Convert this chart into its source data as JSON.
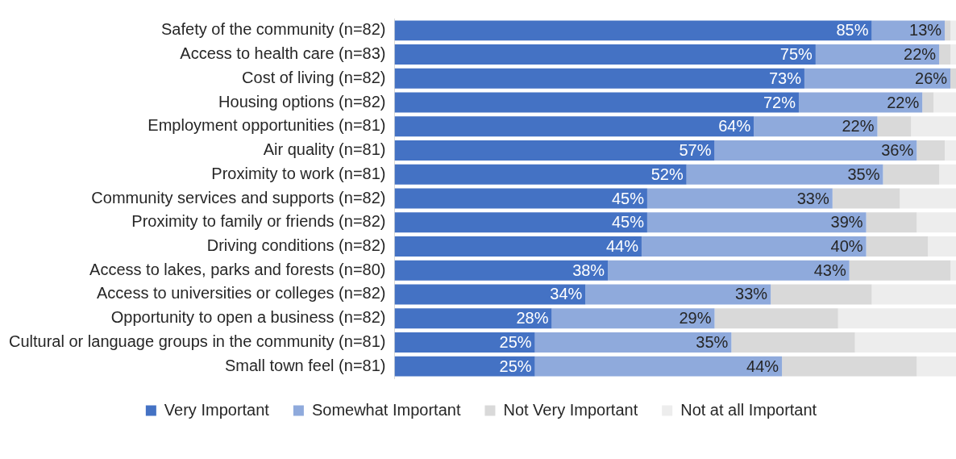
{
  "chart_data": {
    "type": "bar",
    "orientation": "horizontal",
    "stacked": true,
    "legend": "bottom",
    "tick_labels": "y",
    "xlim": [
      0,
      100
    ],
    "categories": [
      "Safety of the community (n=82)",
      "Access to health care (n=83)",
      "Cost of living (n=82)",
      "Housing options (n=82)",
      "Employment opportunities (n=81)",
      "Air quality (n=81)",
      "Proximity to work (n=81)",
      "Community services and supports (n=82)",
      "Proximity to family or friends (n=82)",
      "Driving conditions (n=82)",
      "Access to lakes, parks and forests (n=80)",
      "Access to universities or colleges (n=82)",
      "Opportunity to open a business (n=82)",
      "Cultural or language groups in the community (n=81)",
      "Small town feel (n=81)"
    ],
    "series": [
      {
        "name": "Very Important",
        "color": "#4472c4",
        "values": [
          85,
          75,
          73,
          72,
          64,
          57,
          52,
          45,
          45,
          44,
          38,
          34,
          28,
          25,
          25
        ],
        "value_labels": [
          "85%",
          "75%",
          "73%",
          "72%",
          "64%",
          "57%",
          "52%",
          "45%",
          "45%",
          "44%",
          "38%",
          "34%",
          "28%",
          "25%",
          "25%"
        ]
      },
      {
        "name": "Somewhat Important",
        "color": "#8faadc",
        "values": [
          13,
          22,
          26,
          22,
          22,
          36,
          35,
          33,
          39,
          40,
          43,
          33,
          29,
          35,
          44
        ],
        "value_labels": [
          "13%",
          "22%",
          "26%",
          "22%",
          "22%",
          "36%",
          "35%",
          "33%",
          "39%",
          "40%",
          "43%",
          "33%",
          "29%",
          "35%",
          "44%"
        ]
      },
      {
        "name": "Not Very Important",
        "color": "#d9d9d9",
        "values": [
          1,
          2,
          1,
          2,
          6,
          5,
          10,
          12,
          9,
          11,
          18,
          18,
          22,
          22,
          24
        ]
      },
      {
        "name": "Not at all Important",
        "color": "#ededed",
        "values": [
          1,
          1,
          0,
          4,
          8,
          2,
          3,
          10,
          7,
          5,
          1,
          15,
          21,
          18,
          7
        ]
      }
    ]
  }
}
